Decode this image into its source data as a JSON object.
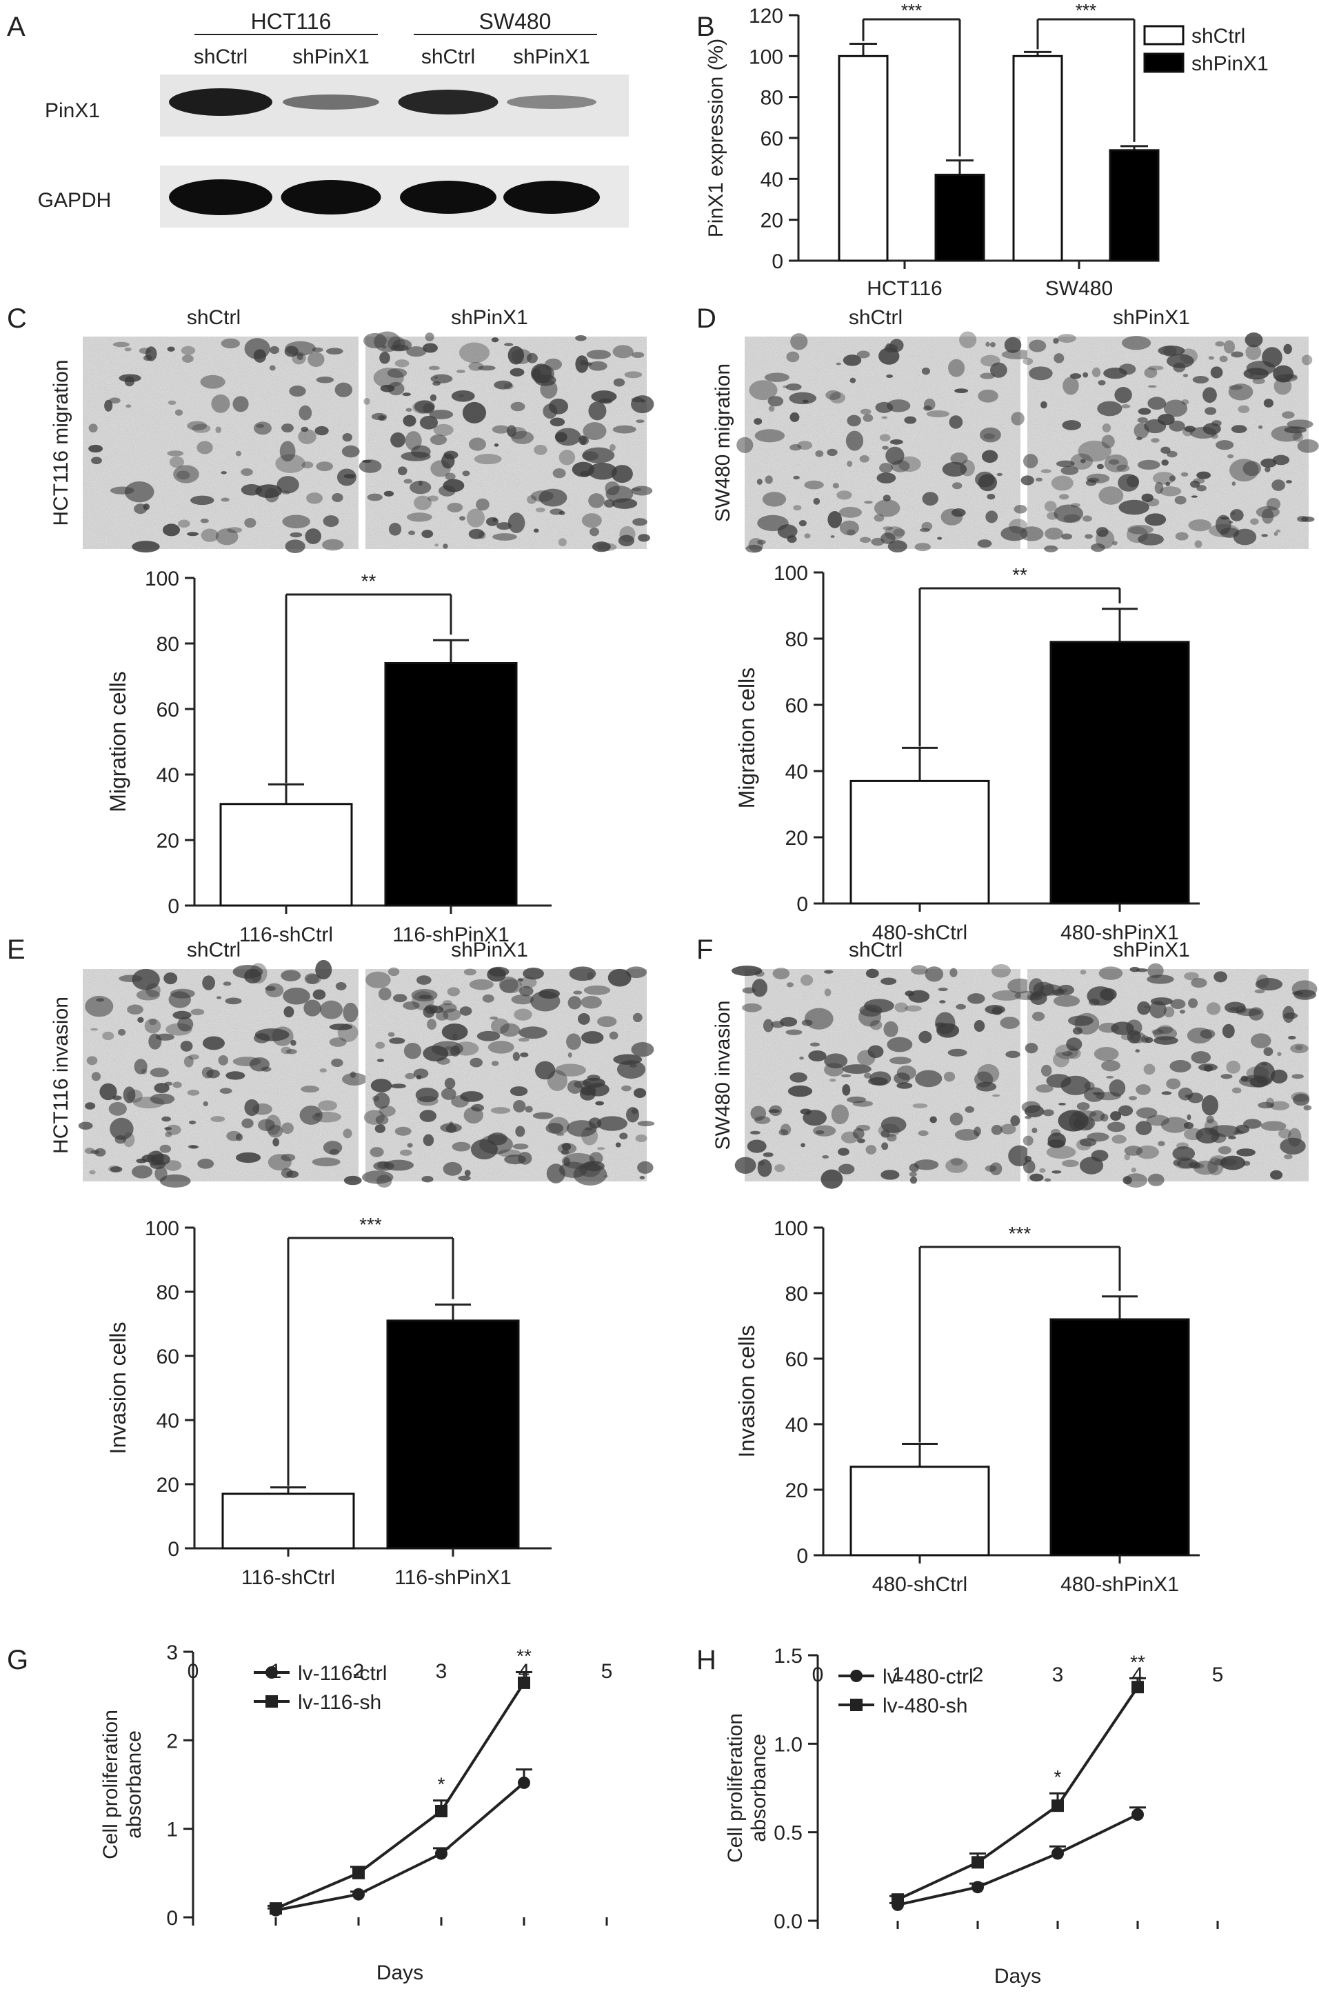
{
  "panel_letters": [
    "A",
    "B",
    "C",
    "D",
    "E",
    "F",
    "G",
    "H"
  ],
  "blot": {
    "cell_lines": [
      "HCT116",
      "SW480"
    ],
    "lanes": [
      "shCtrl",
      "shPinX1",
      "shCtrl",
      "shPinX1"
    ],
    "rows": [
      "PinX1",
      "GAPDH"
    ]
  },
  "micrographs": {
    "C": {
      "side_label": "HCT116 migration",
      "left": "shCtrl",
      "right": "shPinX1"
    },
    "D": {
      "side_label": "SW480 migration",
      "left": "shCtrl",
      "right": "shPinX1"
    },
    "E": {
      "side_label": "HCT116 invasion",
      "left": "shCtrl",
      "right": "shPinX1"
    },
    "F": {
      "side_label": "SW480 invasion",
      "left": "shCtrl",
      "right": "shPinX1"
    }
  },
  "chart_data": [
    {
      "panel": "B",
      "type": "bar",
      "categories": [
        "HCT116",
        "SW480"
      ],
      "series": [
        {
          "name": "shCtrl",
          "fill": "#ffffff",
          "values": [
            100,
            100
          ],
          "errors": [
            6,
            2
          ]
        },
        {
          "name": "shPinX1",
          "fill": "#000000",
          "values": [
            42,
            54
          ],
          "errors": [
            7,
            2
          ]
        }
      ],
      "ylabel": "PinX1 expression (%)",
      "ylim": [
        0,
        120
      ],
      "yticks": [
        0,
        20,
        40,
        60,
        80,
        100,
        120
      ],
      "significance": [
        "***",
        "***"
      ],
      "legend": "top-right"
    },
    {
      "panel": "C",
      "type": "bar",
      "categories": [
        "116-shCtrl",
        "116-shPinX1"
      ],
      "values": [
        31,
        74
      ],
      "errors": [
        6,
        7
      ],
      "fills": [
        "#ffffff",
        "#000000"
      ],
      "ylabel": "Migration cells",
      "ylim": [
        0,
        100
      ],
      "yticks": [
        0,
        20,
        40,
        60,
        80,
        100
      ],
      "significance": "**"
    },
    {
      "panel": "D",
      "type": "bar",
      "categories": [
        "480-shCtrl",
        "480-shPinX1"
      ],
      "values": [
        37,
        79
      ],
      "errors": [
        10,
        10
      ],
      "fills": [
        "#ffffff",
        "#000000"
      ],
      "ylabel": "Migration cells",
      "ylim": [
        0,
        100
      ],
      "yticks": [
        0,
        20,
        40,
        60,
        80,
        100
      ],
      "significance": "**"
    },
    {
      "panel": "E",
      "type": "bar",
      "categories": [
        "116-shCtrl",
        "116-shPinX1"
      ],
      "values": [
        17,
        71
      ],
      "errors": [
        2,
        5
      ],
      "fills": [
        "#ffffff",
        "#000000"
      ],
      "ylabel": "Invasion cells",
      "ylim": [
        0,
        100
      ],
      "yticks": [
        0,
        20,
        40,
        60,
        80,
        100
      ],
      "significance": "***"
    },
    {
      "panel": "F",
      "type": "bar",
      "categories": [
        "480-shCtrl",
        "480-shPinX1"
      ],
      "values": [
        27,
        72
      ],
      "errors": [
        7,
        7
      ],
      "fills": [
        "#ffffff",
        "#000000"
      ],
      "ylabel": "Invasion cells",
      "ylim": [
        0,
        100
      ],
      "yticks": [
        0,
        20,
        40,
        60,
        80,
        100
      ],
      "significance": "***"
    },
    {
      "panel": "G",
      "type": "line",
      "x": [
        1,
        2,
        3,
        4
      ],
      "xticks": [
        0,
        1,
        2,
        3,
        4,
        5
      ],
      "xlim": [
        0,
        5
      ],
      "series": [
        {
          "name": "lv-116-ctrl",
          "marker": "circle",
          "values": [
            0.08,
            0.26,
            0.72,
            1.52
          ],
          "errors": [
            0.02,
            0.03,
            0.06,
            0.15
          ]
        },
        {
          "name": "lv-116-sh",
          "marker": "square",
          "values": [
            0.1,
            0.5,
            1.2,
            2.65
          ],
          "errors": [
            0.03,
            0.07,
            0.12,
            0.12
          ]
        }
      ],
      "xlabel": "Days",
      "ylabel": [
        "Cell proliferation",
        "absorbance"
      ],
      "ylim": [
        0,
        3
      ],
      "yticks": [
        0,
        1,
        2,
        3
      ],
      "significance": [
        {
          "x": 3,
          "label": "*"
        },
        {
          "x": 4,
          "label": "**"
        }
      ],
      "legend": "top-left"
    },
    {
      "panel": "H",
      "type": "line",
      "x": [
        1,
        2,
        3,
        4
      ],
      "xticks": [
        0,
        1,
        2,
        3,
        4,
        5
      ],
      "xlim": [
        0,
        5
      ],
      "series": [
        {
          "name": "lv-480-ctrl",
          "marker": "circle",
          "values": [
            0.09,
            0.19,
            0.38,
            0.6
          ],
          "errors": [
            0.01,
            0.02,
            0.04,
            0.04
          ]
        },
        {
          "name": "lv-480-sh",
          "marker": "square",
          "values": [
            0.12,
            0.33,
            0.65,
            1.32
          ],
          "errors": [
            0.02,
            0.05,
            0.07,
            0.05
          ]
        }
      ],
      "xlabel": "Days",
      "ylabel": [
        "Cell proliferation",
        "absorbance"
      ],
      "ylim": [
        0,
        1.5
      ],
      "yticks": [
        0,
        0.5,
        1.0,
        1.5
      ],
      "ytick_labels": [
        "0.0",
        "0.5",
        "1.0",
        "1.5"
      ],
      "significance": [
        {
          "x": 3,
          "label": "*"
        },
        {
          "x": 4,
          "label": "**"
        }
      ],
      "legend": "top-left"
    }
  ]
}
